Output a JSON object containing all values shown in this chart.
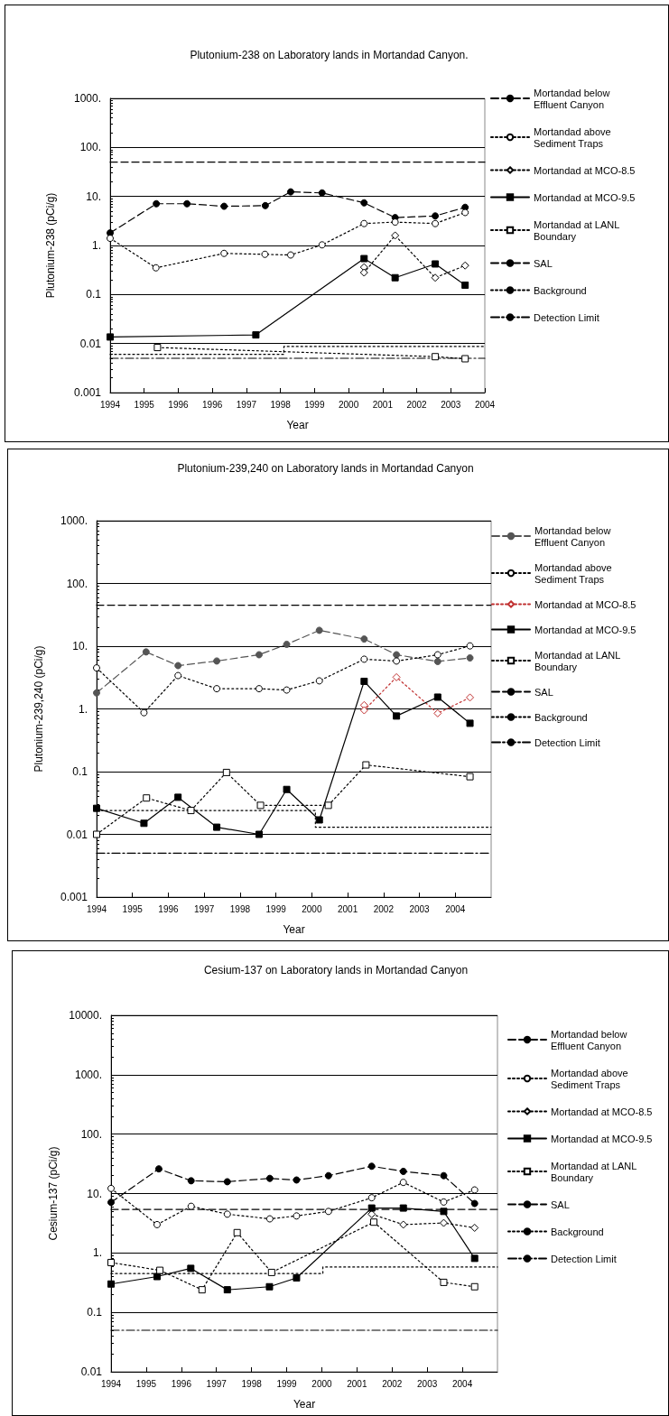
{
  "chart_data": [
    {
      "type": "line",
      "title": "Plutonium-238 on Laboratory lands in Mortandad Canyon.",
      "xlabel": "Year",
      "ylabel": "Plutonium-238 (pCi/g)",
      "log": "y",
      "grid": "y",
      "legend": "right",
      "xlim": [
        1993.75,
        2003.65
      ],
      "xticks": [
        {
          "value": 1993.75,
          "label": "1994"
        },
        {
          "value": 1994.65,
          "label": "1995"
        },
        {
          "value": 1995.55,
          "label": "1996"
        },
        {
          "value": 1996.45,
          "label": "1996"
        },
        {
          "value": 1997.35,
          "label": "1997"
        },
        {
          "value": 1998.25,
          "label": "1998"
        },
        {
          "value": 1999.15,
          "label": "1999"
        },
        {
          "value": 2000.05,
          "label": "2000"
        },
        {
          "value": 2000.95,
          "label": "2001"
        },
        {
          "value": 2001.85,
          "label": "2002"
        },
        {
          "value": 2002.75,
          "label": "2003"
        },
        {
          "value": 2003.65,
          "label": "2004"
        }
      ],
      "ylim": [
        0.001,
        1000
      ],
      "yticks": [
        {
          "value": 1000,
          "label": "1000."
        },
        {
          "value": 100,
          "label": "100."
        },
        {
          "value": 10,
          "label": "10."
        },
        {
          "value": 1,
          "label": "1."
        },
        0.1,
        0.01,
        0.001
      ],
      "series": [
        {
          "name": "Mortandad below Effluent Canyon",
          "color": "#000000",
          "marker": "circle",
          "line_style": "dashed",
          "x": [
            1993.75,
            1994.97,
            1995.78,
            1996.76,
            1997.85,
            1998.52,
            1999.35,
            2000.46,
            2001.28,
            2002.34,
            2003.13
          ],
          "values": [
            1.8,
            7.1,
            7.1,
            6.3,
            6.5,
            12.4,
            11.8,
            7.4,
            3.7,
            4.0,
            6.0
          ]
        },
        {
          "name": "Mortandad above Sediment Traps",
          "color": "#000000",
          "marker": "circle-open",
          "line_style": "dotted",
          "x": [
            1993.75,
            1994.96,
            1996.76,
            1997.84,
            1998.52,
            1999.35,
            2000.46,
            2001.28,
            2002.34,
            2003.13
          ],
          "values": [
            1.4,
            0.35,
            0.69,
            0.66,
            0.64,
            1.03,
            2.8,
            3.0,
            2.8,
            4.7
          ]
        },
        {
          "name": "Mortandad at MCO-8.5",
          "color": "#000000",
          "marker": "diamond-open",
          "line_style": "dotted",
          "x": [
            2000.46,
            2000.46,
            2001.28,
            2002.34,
            2003.13
          ],
          "values": [
            0.36,
            0.28,
            1.6,
            0.22,
            0.39
          ]
        },
        {
          "name": "Mortandad at MCO-9.5",
          "color": "#000000",
          "marker": "square",
          "line_style": "solid",
          "x": [
            1993.75,
            1997.6,
            2000.46,
            2001.28,
            2002.34,
            2003.13
          ],
          "values": [
            0.0136,
            0.015,
            0.54,
            0.22,
            0.42,
            0.155
          ]
        },
        {
          "name": "Mortandad at LANL Boundary",
          "color": "#000000",
          "marker": "square-open",
          "line_style": "dotted",
          "x": [
            1995.0,
            2002.34,
            2003.13
          ],
          "values": [
            0.0083,
            0.0054,
            0.0049
          ]
        },
        {
          "name": "SAL",
          "color": "#000000",
          "marker": "none",
          "line_style": "dashed",
          "x": [
            1993.75,
            2003.65
          ],
          "values": [
            50,
            50
          ]
        },
        {
          "name": "Background",
          "type": "step",
          "color": "#000000",
          "marker": "none",
          "line_style": "dotted",
          "x": [
            1993.75,
            1998.34,
            2003.65
          ],
          "values": [
            0.006,
            0.0087,
            0.0087
          ]
        },
        {
          "name": "Detection Limit",
          "color": "#000000",
          "marker": "none",
          "line_style": "dashdot",
          "x": [
            1993.75,
            2003.65
          ],
          "values": [
            0.005,
            0.005
          ]
        }
      ]
    },
    {
      "type": "line",
      "title": "Plutonium-239,240 on Laboratory lands in Mortandad Canyon",
      "xlabel": "Year",
      "ylabel": "Plutonium-239,240 (pCi/g)",
      "log": "y",
      "grid": "y",
      "legend": "right",
      "xlim": [
        1994,
        2005
      ],
      "xticks": [
        1994,
        1995,
        1996,
        1997,
        1998,
        1999,
        2000,
        2001,
        2002,
        2003,
        2004
      ],
      "ylim": [
        0.001,
        1000
      ],
      "yticks": [
        {
          "value": 1000,
          "label": "1000."
        },
        {
          "value": 100,
          "label": "100."
        },
        {
          "value": 10,
          "label": "10."
        },
        {
          "value": 1,
          "label": "1."
        },
        0.1,
        0.01,
        0.001
      ],
      "series": [
        {
          "name": "Mortandad below Effluent Canyon",
          "color": "#555555",
          "marker": "circle",
          "line_style": "dashed",
          "x": [
            1994.0,
            1995.38,
            1996.27,
            1997.35,
            1998.53,
            1999.3,
            2000.21,
            2001.46,
            2002.36,
            2003.51,
            2004.41
          ],
          "values": [
            1.8,
            8.1,
            4.9,
            5.8,
            7.3,
            10.7,
            17.9,
            13.0,
            7.3,
            5.7,
            6.5
          ]
        },
        {
          "name": "Mortandad above Sediment Traps",
          "color": "#000000",
          "marker": "circle-open",
          "line_style": "dotted",
          "x": [
            1994.0,
            1995.32,
            1996.27,
            1997.35,
            1998.53,
            1999.3,
            2000.21,
            2001.46,
            2002.36,
            2003.51,
            2004.41
          ],
          "values": [
            4.5,
            0.87,
            3.4,
            2.1,
            2.1,
            2.0,
            2.8,
            6.2,
            5.8,
            7.3,
            10.1
          ]
        },
        {
          "name": "Mortandad at MCO-8.5",
          "color": "#c03030",
          "marker": "diamond-open",
          "line_style": "dotted",
          "x": [
            2001.46,
            2001.46,
            2002.36,
            2003.51,
            2004.41
          ],
          "values": [
            1.15,
            0.95,
            3.2,
            0.85,
            1.52
          ]
        },
        {
          "name": "Mortandad at MCO-9.5",
          "color": "#000000",
          "marker": "square",
          "line_style": "solid",
          "x": [
            1994.0,
            1995.32,
            1996.27,
            1997.35,
            1998.53,
            1999.3,
            2000.21,
            2001.46,
            2002.36,
            2003.51,
            2004.41
          ],
          "values": [
            0.026,
            0.015,
            0.039,
            0.013,
            0.01,
            0.052,
            0.017,
            2.75,
            0.77,
            1.54,
            0.59
          ]
        },
        {
          "name": "Mortandad at LANL Boundary",
          "color": "#000000",
          "marker": "square-open",
          "line_style": "dotted",
          "x": [
            1994.0,
            1995.39,
            1996.63,
            1997.62,
            1998.57,
            2000.46,
            2001.51,
            2004.41
          ],
          "values": [
            0.01,
            0.038,
            0.024,
            0.097,
            0.029,
            0.029,
            0.128,
            0.083
          ]
        },
        {
          "name": "SAL",
          "color": "#000000",
          "marker": "none",
          "line_style": "dashed",
          "x": [
            1994,
            2005
          ],
          "values": [
            45,
            45
          ]
        },
        {
          "name": "Background",
          "type": "step",
          "color": "#000000",
          "marker": "none",
          "line_style": "dotted",
          "x": [
            1994,
            2000.1,
            2005
          ],
          "values": [
            0.024,
            0.013,
            0.013
          ]
        },
        {
          "name": "Detection Limit",
          "color": "#000000",
          "marker": "none",
          "line_style": "dashdot",
          "x": [
            1994,
            2005
          ],
          "values": [
            0.005,
            0.005
          ]
        }
      ]
    },
    {
      "type": "line",
      "title": "Cesium-137 on Laboratory lands in Mortandad Canyon",
      "xlabel": "Year",
      "ylabel": "Cesium-137 (pCi/g)",
      "log": "y",
      "grid": "y",
      "legend": "right",
      "xlim": [
        1994,
        2005
      ],
      "xticks": [
        1994,
        1995,
        1996,
        1997,
        1998,
        1999,
        2000,
        2001,
        2002,
        2003,
        2004
      ],
      "ylim": [
        0.01,
        10000
      ],
      "yticks": [
        {
          "value": 10000,
          "label": "10000."
        },
        {
          "value": 1000,
          "label": "1000."
        },
        {
          "value": 100,
          "label": "100."
        },
        {
          "value": 10,
          "label": "10."
        },
        {
          "value": 1,
          "label": "1."
        },
        0.1,
        0.01
      ],
      "series": [
        {
          "name": "Mortandad below Effluent Canyon",
          "color": "#000000",
          "marker": "circle",
          "line_style": "dashed",
          "x": [
            1994.0,
            1995.36,
            1996.28,
            1997.31,
            1998.52,
            1999.28,
            2000.19,
            2001.42,
            2002.32,
            2003.47,
            2004.35
          ],
          "values": [
            7.1,
            26,
            16.4,
            15.8,
            18,
            16.9,
            20,
            28.8,
            23.6,
            20,
            6.8
          ]
        },
        {
          "name": "Mortandad above Sediment Traps",
          "color": "#000000",
          "marker": "circle-open",
          "line_style": "dotted",
          "x": [
            1994.0,
            1995.31,
            1996.28,
            1997.31,
            1998.52,
            1999.28,
            2000.19,
            2001.42,
            2002.32,
            2003.47,
            2004.35
          ],
          "values": [
            12.2,
            3.0,
            6.1,
            4.5,
            3.75,
            4.2,
            5.0,
            8.5,
            15.4,
            7.2,
            11.5
          ]
        },
        {
          "name": "Mortandad at MCO-8.5",
          "color": "#000000",
          "marker": "diamond-open",
          "line_style": "dotted",
          "x": [
            2001.42,
            2002.32,
            2003.47,
            2004.35
          ],
          "values": [
            4.5,
            3.0,
            3.2,
            2.65
          ]
        },
        {
          "name": "Mortandad at MCO-9.5",
          "color": "#000000",
          "marker": "square",
          "line_style": "solid",
          "x": [
            1994.0,
            1995.31,
            1996.27,
            1997.31,
            1998.51,
            1999.28,
            2001.42,
            2002.32,
            2003.47,
            2004.35
          ],
          "values": [
            0.3,
            0.4,
            0.55,
            0.24,
            0.27,
            0.38,
            5.7,
            5.7,
            5.0,
            0.81
          ]
        },
        {
          "name": "Mortandad at LANL Boundary",
          "color": "#000000",
          "marker": "square-open",
          "line_style": "dotted",
          "x": [
            1994.0,
            1995.39,
            1996.59,
            1997.59,
            1998.57,
            2001.48,
            2003.47,
            2004.35
          ],
          "values": [
            0.69,
            0.51,
            0.24,
            2.2,
            0.47,
            3.3,
            0.32,
            0.27
          ]
        },
        {
          "name": "SAL",
          "color": "#000000",
          "marker": "none",
          "line_style": "dashed",
          "x": [
            1994,
            2005
          ],
          "values": [
            5.4,
            5.4
          ]
        },
        {
          "name": "Background",
          "type": "step",
          "color": "#000000",
          "marker": "none",
          "line_style": "dotted",
          "x": [
            1994,
            2000.03,
            2005
          ],
          "values": [
            0.45,
            0.58,
            0.58
          ]
        },
        {
          "name": "Detection Limit",
          "color": "#000000",
          "marker": "none",
          "line_style": "dashdot",
          "x": [
            1994,
            2005
          ],
          "values": [
            0.05,
            0.05
          ]
        }
      ]
    }
  ]
}
